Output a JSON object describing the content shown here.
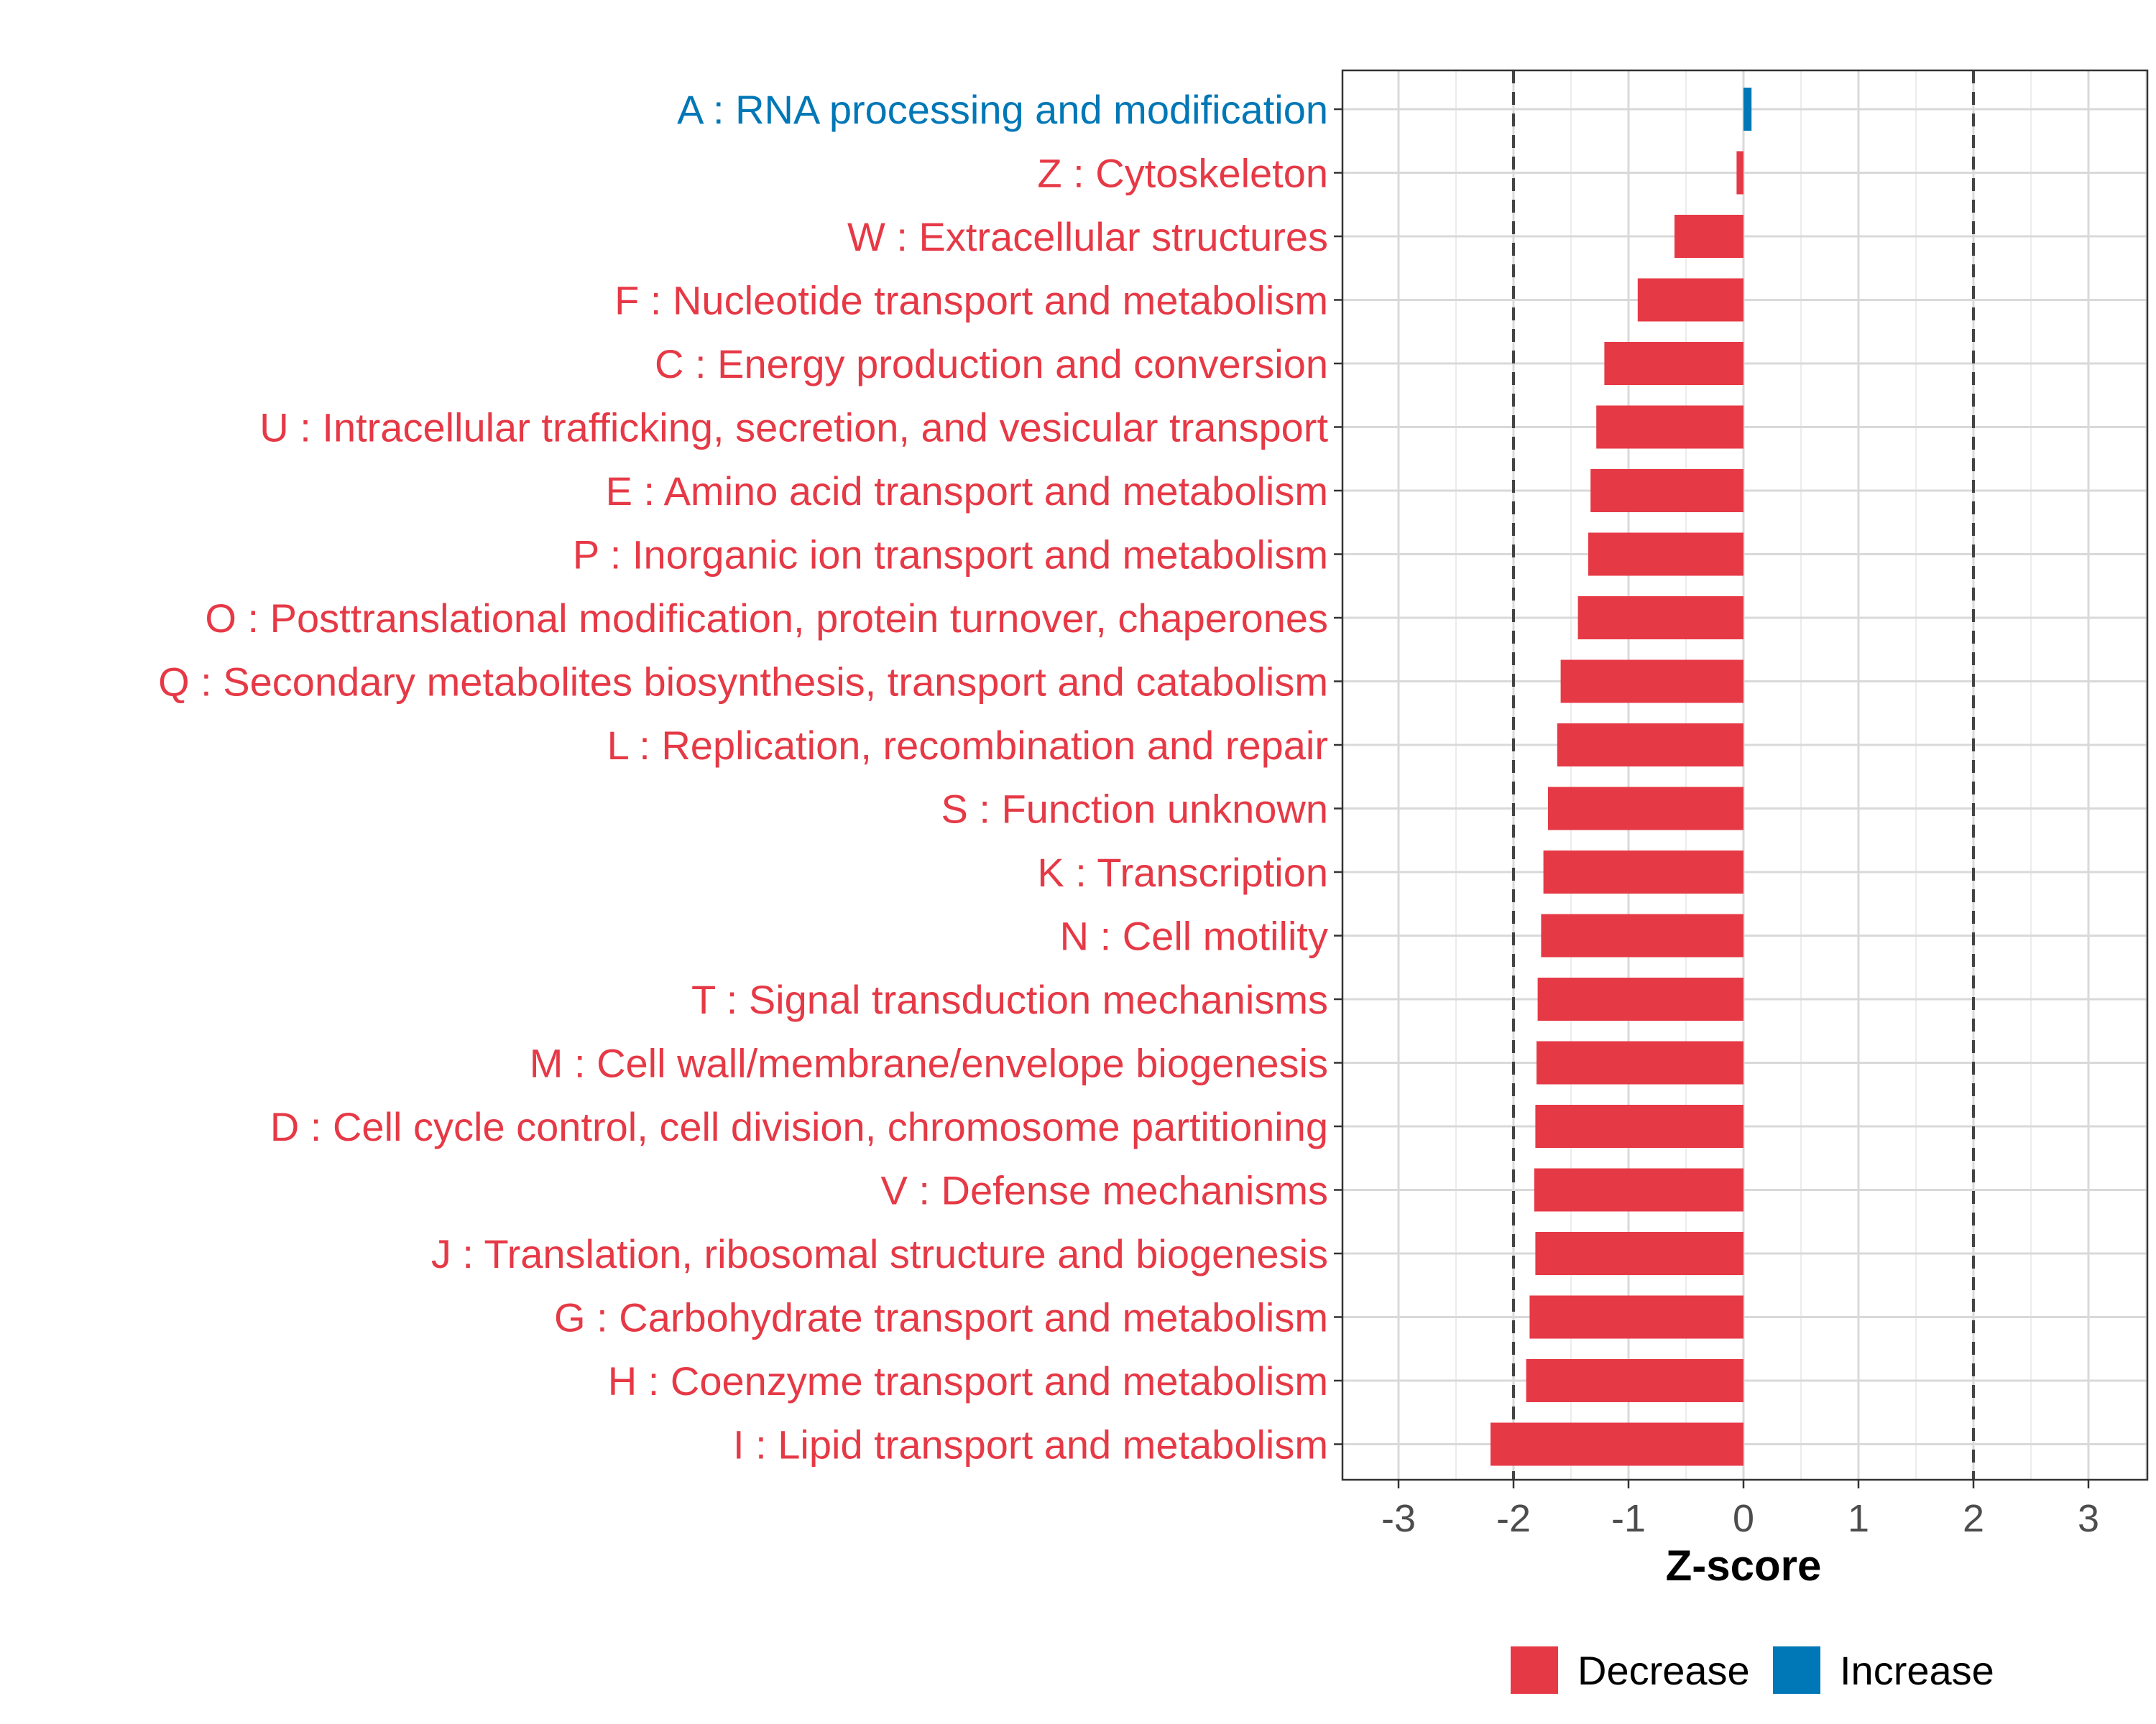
{
  "chart_data": {
    "type": "bar",
    "orientation": "horizontal",
    "xlabel": "Z-score",
    "ylabel": "",
    "xlim": [
      -3.5,
      3.5
    ],
    "xticks": [
      -3,
      -2,
      -1,
      0,
      1,
      2,
      3
    ],
    "xtick_labels": [
      "-3",
      "-2",
      "-1",
      "0",
      "1",
      "2",
      "3"
    ],
    "reference_lines": [
      -2,
      2
    ],
    "grid": true,
    "legend_position": "bottom",
    "colors": {
      "Decrease": "#E63946",
      "Increase": "#0077B6"
    },
    "legend": [
      "Decrease",
      "Increase"
    ],
    "categories": [
      "A : RNA processing and modification",
      "Z : Cytoskeleton",
      "W : Extracellular structures",
      "F : Nucleotide transport and metabolism",
      "C : Energy production and conversion",
      "U : Intracellular trafficking, secretion, and vesicular transport",
      "E : Amino acid transport and metabolism",
      "P : Inorganic ion transport and metabolism",
      "O : Posttranslational modification, protein turnover, chaperones",
      "Q : Secondary metabolites biosynthesis, transport and catabolism",
      "L : Replication, recombination and repair",
      "S : Function unknown",
      "K : Transcription",
      "N : Cell motility",
      "T : Signal transduction mechanisms",
      "M : Cell wall/membrane/envelope biogenesis",
      "D : Cell cycle control, cell division, chromosome partitioning",
      "V : Defense mechanisms",
      "J : Translation, ribosomal structure and biogenesis",
      "G : Carbohydrate transport and metabolism",
      "H : Coenzyme transport and metabolism",
      "I : Lipid transport and metabolism"
    ],
    "values": [
      0.07,
      -0.06,
      -0.6,
      -0.92,
      -1.21,
      -1.28,
      -1.33,
      -1.35,
      -1.44,
      -1.59,
      -1.62,
      -1.7,
      -1.74,
      -1.76,
      -1.79,
      -1.8,
      -1.81,
      -1.82,
      -1.81,
      -1.86,
      -1.89,
      -2.2
    ],
    "direction": [
      "Increase",
      "Decrease",
      "Decrease",
      "Decrease",
      "Decrease",
      "Decrease",
      "Decrease",
      "Decrease",
      "Decrease",
      "Decrease",
      "Decrease",
      "Decrease",
      "Decrease",
      "Decrease",
      "Decrease",
      "Decrease",
      "Decrease",
      "Decrease",
      "Decrease",
      "Decrease",
      "Decrease",
      "Decrease"
    ]
  }
}
